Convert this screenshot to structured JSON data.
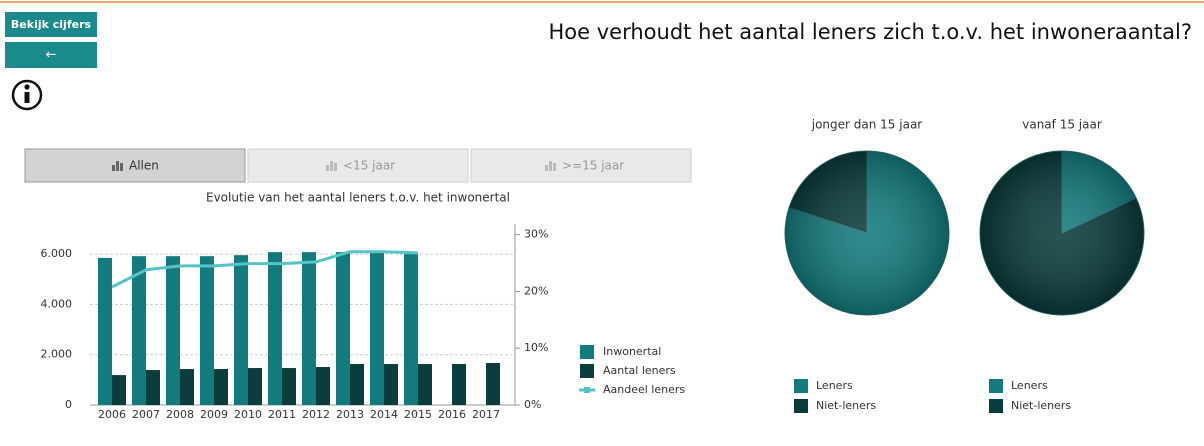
{
  "header": {
    "buttons": [
      "Bekijk cijfers",
      "←"
    ],
    "title": "Hoe verhoudt het aantal leners zich t.o.v. het inwoneraantal?"
  },
  "tabs": [
    "Allen",
    "<15 jaar",
    ">=15 jaar"
  ],
  "chart_data": [
    {
      "type": "bar",
      "title": "Evolutie van het aantal leners t.o.v. het inwonertal",
      "categories": [
        "2006",
        "2007",
        "2008",
        "2009",
        "2010",
        "2011",
        "2012",
        "2013",
        "2014",
        "2015",
        "2016",
        "2017"
      ],
      "series": [
        {
          "name": "Inwonertal",
          "color": "#137b7d",
          "values": [
            5850,
            5920,
            5920,
            5920,
            5960,
            6080,
            6080,
            6080,
            6050,
            6000,
            null,
            null
          ]
        },
        {
          "name": "Aantal leners",
          "color": "#0a3d3b",
          "values": [
            1190,
            1390,
            1430,
            1430,
            1470,
            1470,
            1510,
            1630,
            1630,
            1630,
            1630,
            1670
          ]
        },
        {
          "name": "Aandeel leners",
          "color": "#55c4c8",
          "type": "line",
          "axis": "y2",
          "values": [
            20.8,
            23.8,
            24.5,
            24.5,
            24.9,
            24.9,
            25.2,
            27.0,
            27.0,
            26.8,
            null,
            null
          ]
        }
      ],
      "ylim": [
        0,
        7000
      ],
      "yticks": [
        0,
        {
          "value": 2000,
          "label": "2.000"
        },
        {
          "value": 4000,
          "label": "4.000"
        },
        {
          "value": 6000,
          "label": "6.000"
        }
      ],
      "y2lim": [
        0,
        31
      ],
      "y2ticks": [
        {
          "value": 0,
          "label": "0%"
        },
        {
          "value": 10,
          "label": "10%"
        },
        {
          "value": 20,
          "label": "20%"
        },
        {
          "value": 30,
          "label": "30%"
        }
      ],
      "grid": true,
      "legend": "right"
    },
    {
      "type": "pie",
      "title": "jonger dan 15 jaar",
      "categories": [
        "Leners",
        "Niet-leners"
      ],
      "values": [
        80,
        20
      ],
      "colors": [
        "#137b7d",
        "#083b3a"
      ]
    },
    {
      "type": "pie",
      "title": "vanaf 15 jaar",
      "categories": [
        "Leners",
        "Niet-leners"
      ],
      "values": [
        18,
        82
      ],
      "colors": [
        "#137b7d",
        "#083b3a"
      ]
    }
  ]
}
